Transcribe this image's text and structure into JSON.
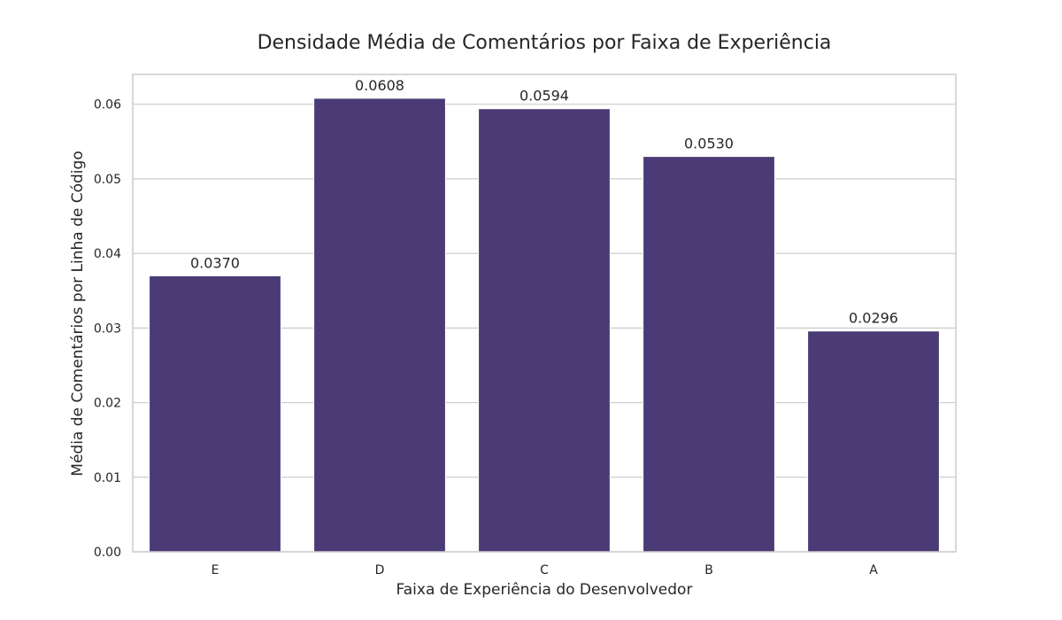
{
  "chart_data": {
    "type": "bar",
    "title": "Densidade Média de Comentários por Faixa de Experiência",
    "xlabel": "Faixa de Experiência do Desenvolvedor",
    "ylabel": "Média de Comentários por Linha de Código",
    "categories": [
      "E",
      "D",
      "C",
      "B",
      "A"
    ],
    "values": [
      0.037,
      0.0608,
      0.0594,
      0.053,
      0.0296
    ],
    "value_labels": [
      "0.0370",
      "0.0608",
      "0.0594",
      "0.0530",
      "0.0296"
    ],
    "ylim": [
      0,
      0.064
    ],
    "yticks": [
      0.0,
      0.01,
      0.02,
      0.03,
      0.04,
      0.05,
      0.06
    ],
    "ytick_labels": [
      "0.00",
      "0.01",
      "0.02",
      "0.03",
      "0.04",
      "0.05",
      "0.06"
    ],
    "grid": "horizontal",
    "bar_color": "#4a3a75"
  }
}
